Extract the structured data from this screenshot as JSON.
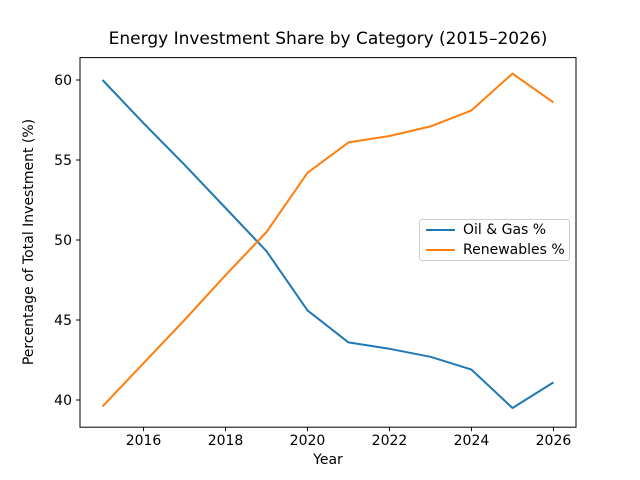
{
  "chart_data": {
    "type": "line",
    "title": "Energy Investment Share by Category (2015–2026)",
    "xlabel": "Year",
    "ylabel": "Percentage of Total Investment (%)",
    "x": [
      2015,
      2016,
      2017,
      2018,
      2019,
      2020,
      2021,
      2022,
      2023,
      2024,
      2025,
      2026
    ],
    "series": [
      {
        "name": "Oil & Gas %",
        "color": "#1f77b4",
        "values": [
          60.0,
          57.3,
          54.7,
          52.0,
          49.3,
          45.6,
          43.6,
          43.2,
          42.7,
          41.9,
          39.5,
          41.1
        ]
      },
      {
        "name": "Renewables %",
        "color": "#ff7f0e",
        "values": [
          39.6,
          42.3,
          45.0,
          47.8,
          50.5,
          54.2,
          56.1,
          56.5,
          57.1,
          58.1,
          60.4,
          58.6
        ]
      }
    ],
    "xlim": [
      2014.45,
      2026.55
    ],
    "ylim": [
      38.3,
      61.4
    ],
    "xticks": [
      2016,
      2018,
      2020,
      2022,
      2024,
      2026
    ],
    "yticks": [
      40,
      45,
      50,
      55,
      60
    ],
    "grid": false,
    "legend_position": "center right",
    "axis_color": "#000000",
    "background": "#ffffff"
  }
}
